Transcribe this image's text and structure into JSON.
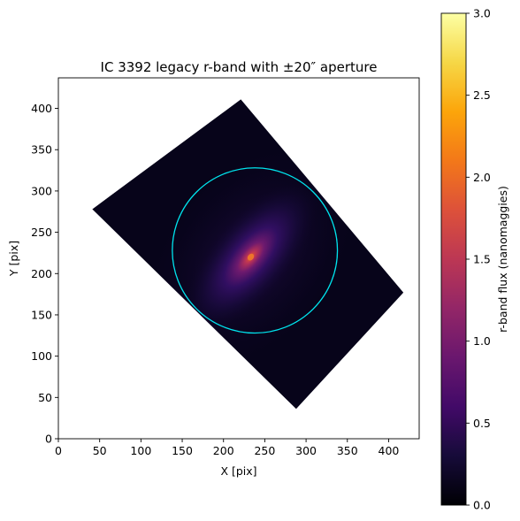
{
  "chart_data": {
    "type": "heatmap",
    "title": "IC 3392 legacy r-band with ±20″ aperture",
    "xlabel": "X [pix]",
    "ylabel": "Y [pix]",
    "xlim": [
      0,
      437
    ],
    "ylim": [
      0,
      437
    ],
    "xticks": [
      "0",
      "50",
      "100",
      "150",
      "200",
      "250",
      "300",
      "350",
      "400"
    ],
    "yticks": [
      "0",
      "50",
      "100",
      "150",
      "200",
      "250",
      "300",
      "350",
      "400"
    ],
    "image": {
      "footprint_vertices": [
        [
          41,
          278
        ],
        [
          221,
          411
        ],
        [
          418,
          177
        ],
        [
          288,
          36
        ]
      ],
      "background_value": 0.0,
      "galaxy": {
        "center": [
          233,
          220
        ],
        "peak_flux": 1.9,
        "position_angle_deg": 50,
        "axis_ratio": 0.45,
        "extent_pix": 110
      }
    },
    "aperture": {
      "center": [
        238,
        228
      ],
      "radius_pix": 100,
      "color": "#00e5ee"
    },
    "colorbar": {
      "label": "r-band flux (nanomaggies)",
      "range": [
        0.0,
        3.0
      ],
      "ticks": [
        "0.0",
        "0.5",
        "1.0",
        "1.5",
        "2.0",
        "2.5",
        "3.0"
      ],
      "colormap": "inferno"
    },
    "grid": false,
    "legend": "none"
  }
}
